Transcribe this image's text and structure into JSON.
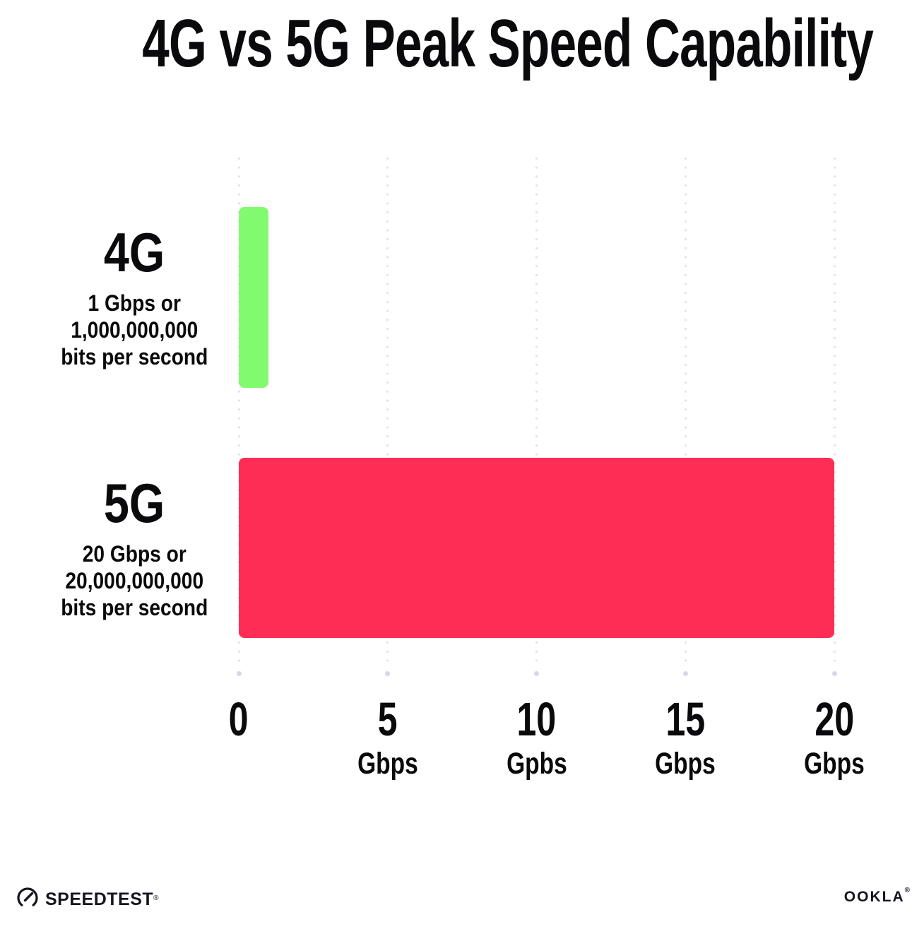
{
  "chart_data": {
    "type": "bar",
    "orientation": "horizontal",
    "title": "4G vs 5G Peak Speed Capability",
    "categories": [
      "4G",
      "5G"
    ],
    "values": [
      1,
      20
    ],
    "bar_colors": [
      "#82fa70",
      "#fd2d55"
    ],
    "category_sublabels": [
      [
        "1 Gbps or",
        "1,000,000,000",
        "bits per second"
      ],
      [
        "20 Gbps or",
        "20,000,000,000",
        "bits per second"
      ]
    ],
    "x_ticks": [
      {
        "value": 0,
        "label": "0",
        "unit": ""
      },
      {
        "value": 5,
        "label": "5",
        "unit": "Gbps"
      },
      {
        "value": 10,
        "label": "10",
        "unit": "Gpbs"
      },
      {
        "value": 15,
        "label": "15",
        "unit": "Gbps"
      },
      {
        "value": 20,
        "label": "20",
        "unit": "Gbps"
      }
    ],
    "xlim": [
      0,
      20
    ],
    "grid": "dotted-vertical",
    "legend": "none"
  },
  "footer": {
    "speedtest_label": "SPEEDTEST",
    "ookla_label": "OOKLA",
    "reg_mark": "®"
  }
}
